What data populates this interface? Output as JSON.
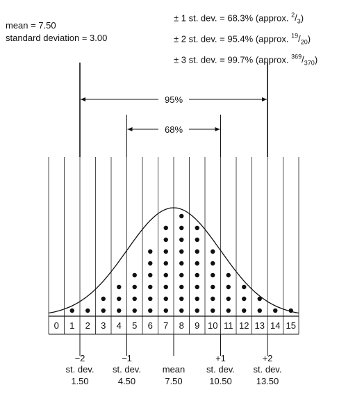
{
  "summary": {
    "mean_line": "mean = 7.50",
    "sd_line": "standard deviation = 3.00"
  },
  "rules": [
    {
      "prefix": "± 1 st. dev. = 68.3% (approx. ",
      "num": "2",
      "den": "3",
      "suffix": ")"
    },
    {
      "prefix": "± 2 st. dev. = 95.4% (approx. ",
      "num": "19",
      "den": "20",
      "suffix": ")"
    },
    {
      "prefix": "± 3 st. dev. = 99.7% (approx. ",
      "num": "369",
      "den": "370",
      "suffix": ")"
    }
  ],
  "chart_data": {
    "type": "dot-plot with normal curve",
    "mean": 7.5,
    "sd": 3.0,
    "x_ticks": [
      "0",
      "1",
      "2",
      "3",
      "4",
      "5",
      "6",
      "7",
      "8",
      "9",
      "10",
      "11",
      "12",
      "13",
      "14",
      "15"
    ],
    "values": [
      0,
      1,
      1,
      2,
      3,
      4,
      6,
      8,
      9,
      8,
      6,
      4,
      3,
      2,
      1,
      1
    ],
    "intervals": [
      {
        "label": "95%",
        "from": 1.5,
        "to": 13.5
      },
      {
        "label": "68%",
        "from": 4.5,
        "to": 10.5
      }
    ],
    "markers": [
      {
        "x": 1.5,
        "lines": [
          "−2",
          "st. dev.",
          "1.50"
        ]
      },
      {
        "x": 4.5,
        "lines": [
          "−1",
          "st. dev.",
          "4.50"
        ]
      },
      {
        "x": 7.5,
        "lines": [
          "",
          "mean",
          "7.50"
        ]
      },
      {
        "x": 10.5,
        "lines": [
          "+1",
          "st. dev.",
          "10.50"
        ]
      },
      {
        "x": 13.5,
        "lines": [
          "+2",
          "st. dev.",
          "13.50"
        ]
      }
    ]
  }
}
